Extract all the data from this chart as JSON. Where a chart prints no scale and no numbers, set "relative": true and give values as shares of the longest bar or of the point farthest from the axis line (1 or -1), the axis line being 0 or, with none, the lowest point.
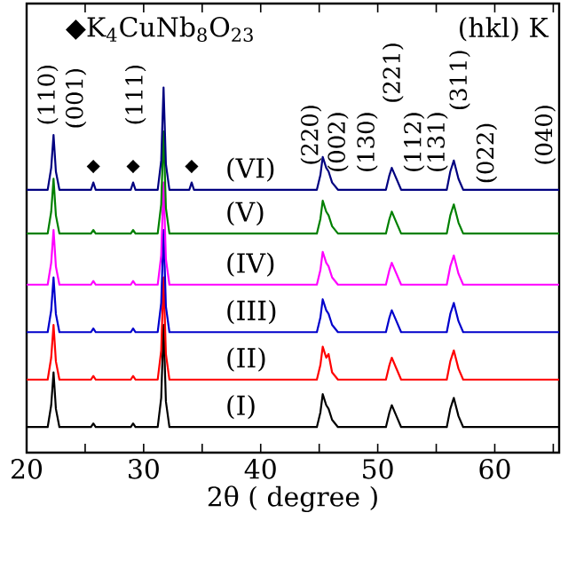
{
  "chart_data": {
    "type": "line",
    "relative": true,
    "xlabel": "2θ ( degree )",
    "legend": false,
    "grid": false,
    "xlim": [
      20,
      65.5
    ],
    "xticks": [
      20,
      30,
      40,
      50,
      60,
      {
        "value": 25,
        "label": null
      },
      {
        "value": 35,
        "label": null
      },
      {
        "value": 45,
        "label": null
      },
      {
        "value": 55,
        "label": null
      },
      {
        "value": 65,
        "label": null
      }
    ],
    "x": [
      20,
      21.8,
      22.1,
      22.3,
      22.5,
      22.8,
      25.5,
      25.7,
      25.9,
      28.9,
      29.1,
      29.3,
      31.2,
      31.5,
      31.7,
      31.9,
      32.2,
      33.9,
      34.1,
      34.3,
      44.8,
      45.1,
      45.3,
      45.6,
      45.8,
      46.1,
      46.6,
      50.7,
      51.0,
      51.2,
      51.6,
      52.0,
      55.9,
      56.2,
      56.5,
      56.9,
      57.3,
      65.5
    ],
    "series": [
      {
        "name": "(I)",
        "color": "#000000",
        "values": [
          0.07,
          0.07,
          0.13,
          0.22,
          0.12,
          0.07,
          0.07,
          0.08,
          0.07,
          0.07,
          0.08,
          0.07,
          0.07,
          0.15,
          0.35,
          0.14,
          0.07,
          0.07,
          0.07,
          0.07,
          0.07,
          0.11,
          0.16,
          0.13,
          0.12,
          0.09,
          0.07,
          0.07,
          0.11,
          0.13,
          0.1,
          0.07,
          0.07,
          0.12,
          0.15,
          0.1,
          0.07,
          0.07
        ]
      },
      {
        "name": "(II)",
        "color": "#ff0000",
        "values": [
          0.2,
          0.2,
          0.26,
          0.35,
          0.25,
          0.2,
          0.2,
          0.21,
          0.2,
          0.2,
          0.21,
          0.2,
          0.2,
          0.28,
          0.48,
          0.27,
          0.2,
          0.2,
          0.2,
          0.2,
          0.2,
          0.24,
          0.29,
          0.26,
          0.27,
          0.22,
          0.2,
          0.2,
          0.24,
          0.26,
          0.23,
          0.2,
          0.2,
          0.25,
          0.28,
          0.23,
          0.2,
          0.2
        ]
      },
      {
        "name": "(III)",
        "color": "#0000cc",
        "values": [
          0.33,
          0.33,
          0.39,
          0.48,
          0.38,
          0.33,
          0.33,
          0.34,
          0.33,
          0.33,
          0.34,
          0.33,
          0.33,
          0.41,
          0.61,
          0.4,
          0.33,
          0.33,
          0.33,
          0.33,
          0.33,
          0.37,
          0.42,
          0.39,
          0.38,
          0.35,
          0.33,
          0.33,
          0.37,
          0.39,
          0.36,
          0.33,
          0.33,
          0.38,
          0.41,
          0.36,
          0.33,
          0.33
        ]
      },
      {
        "name": "(IV)",
        "color": "#ff00ff",
        "values": [
          0.46,
          0.46,
          0.52,
          0.61,
          0.51,
          0.46,
          0.46,
          0.47,
          0.46,
          0.46,
          0.47,
          0.46,
          0.46,
          0.54,
          0.74,
          0.53,
          0.46,
          0.46,
          0.46,
          0.46,
          0.46,
          0.5,
          0.55,
          0.52,
          0.51,
          0.48,
          0.46,
          0.46,
          0.5,
          0.52,
          0.49,
          0.46,
          0.46,
          0.51,
          0.54,
          0.49,
          0.46,
          0.46
        ]
      },
      {
        "name": "(V)",
        "color": "#008000",
        "values": [
          0.6,
          0.6,
          0.66,
          0.75,
          0.65,
          0.6,
          0.6,
          0.61,
          0.6,
          0.6,
          0.61,
          0.6,
          0.6,
          0.68,
          0.88,
          0.67,
          0.6,
          0.6,
          0.6,
          0.6,
          0.6,
          0.64,
          0.69,
          0.66,
          0.65,
          0.62,
          0.6,
          0.6,
          0.64,
          0.66,
          0.63,
          0.6,
          0.6,
          0.65,
          0.68,
          0.63,
          0.6,
          0.6
        ]
      },
      {
        "name": "(VI)",
        "color": "#000080",
        "values": [
          0.72,
          0.72,
          0.78,
          0.87,
          0.77,
          0.72,
          0.72,
          0.74,
          0.72,
          0.72,
          0.74,
          0.72,
          0.72,
          0.8,
          1.0,
          0.79,
          0.72,
          0.72,
          0.74,
          0.72,
          0.72,
          0.76,
          0.81,
          0.78,
          0.77,
          0.74,
          0.72,
          0.72,
          0.76,
          0.78,
          0.75,
          0.72,
          0.72,
          0.77,
          0.8,
          0.75,
          0.72,
          0.72
        ]
      }
    ],
    "annotations": [
      "◆K$_{4}$CuNb$_{8}$O$_{23}$",
      "(hkl) K",
      {
        "text": "◆",
        "x": 25.7,
        "y": 0.74
      },
      {
        "text": "◆",
        "x": 29.1,
        "y": 0.74
      },
      {
        "text": "◆",
        "x": 34.1,
        "y": 0.74
      },
      "(110)",
      "(001)",
      "(111)",
      "(220)",
      "(002)",
      "(130)",
      "(221)",
      "(112)",
      "(131)",
      "(311)",
      "(022)",
      "(040)"
    ]
  }
}
